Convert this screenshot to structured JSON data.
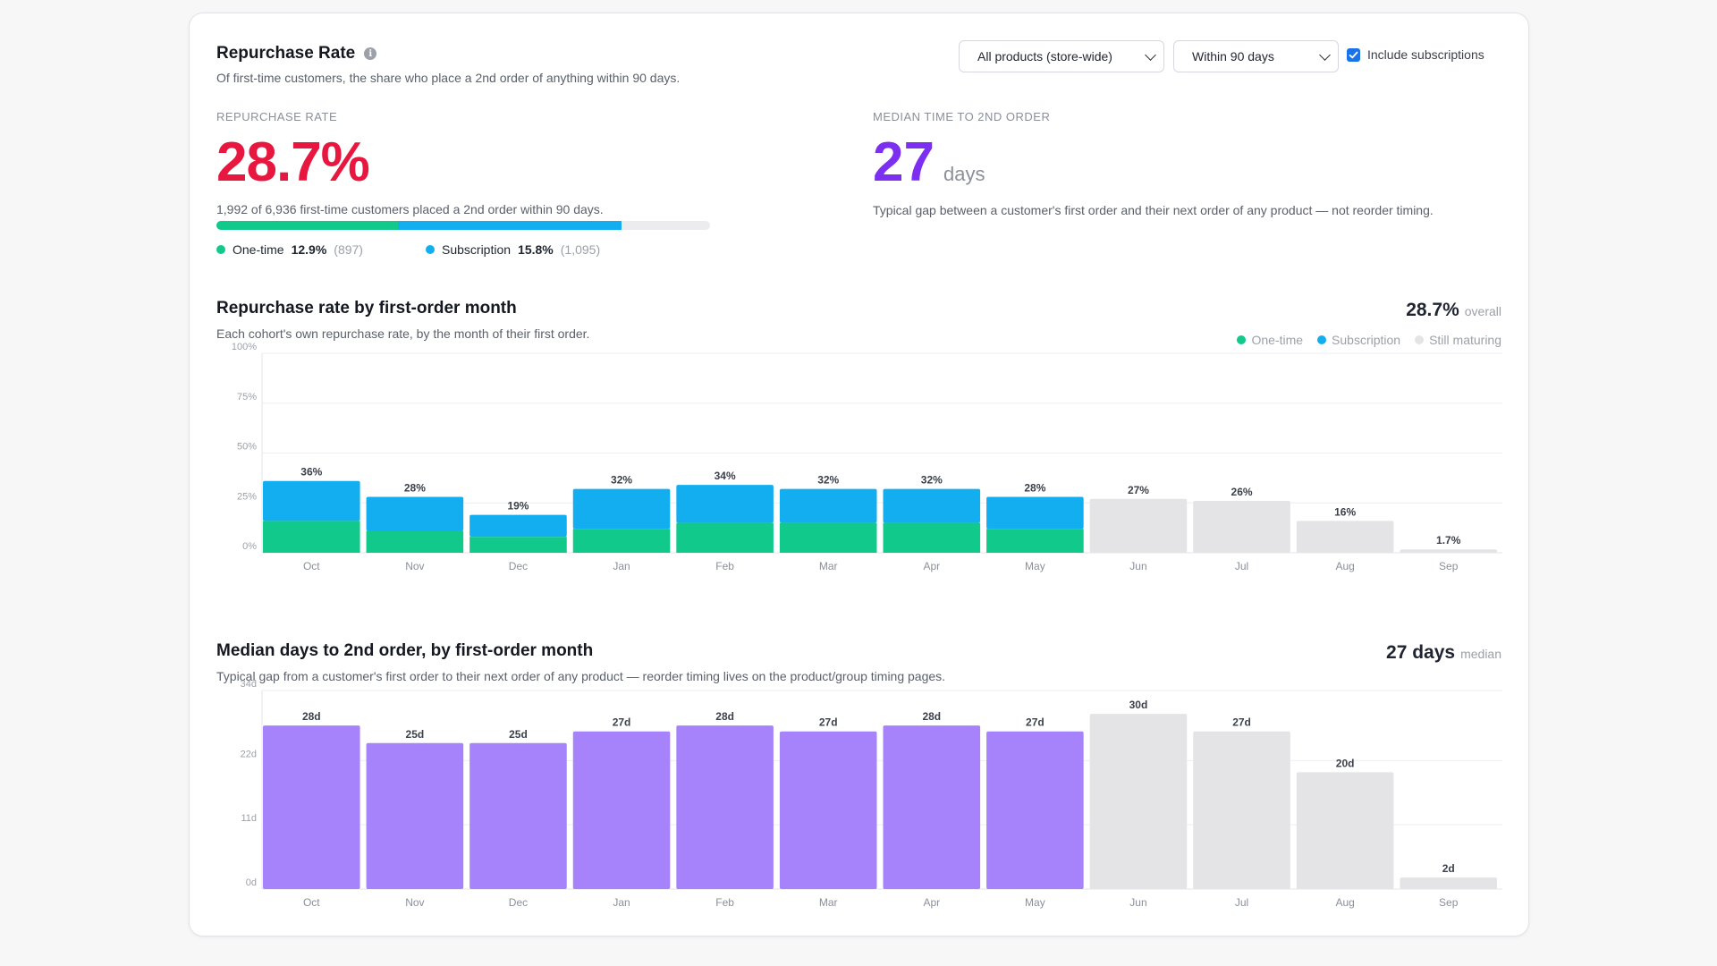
{
  "header": {
    "title": "Repurchase Rate",
    "subtitle": "Of first-time customers, the share who place a 2nd order of anything within 90 days."
  },
  "controls": {
    "product_filter": "All products (store-wide)",
    "window_filter": "Within 90 days",
    "include_subscriptions_label": "Include subscriptions",
    "include_subscriptions_checked": true
  },
  "kpi_rate": {
    "label": "REPURCHASE RATE",
    "value": "28.7%",
    "description": "1,992 of 6,936 first-time customers placed a 2nd order within 90 days.",
    "one_time_share": 12.9,
    "subscription_share": 15.8,
    "one_time_label": "One-time",
    "one_time_pct": "12.9%",
    "one_time_count": "(897)",
    "subscription_label": "Subscription",
    "subscription_pct": "15.8%",
    "subscription_count": "(1,095)"
  },
  "kpi_median": {
    "label": "MEDIAN TIME TO 2ND ORDER",
    "value": "27",
    "unit": "days",
    "description": "Typical gap between a customer's first order and their next order of any product — not reorder timing."
  },
  "rate_chart_section": {
    "title": "Repurchase rate by first-order month",
    "subtitle": "Each cohort's own repurchase rate, by the month of their first order.",
    "summary_value": "28.7%",
    "summary_label": "overall",
    "legend": {
      "one_time": "One-time",
      "subscription": "Subscription",
      "maturing": "Still maturing"
    }
  },
  "median_chart_section": {
    "title": "Median days to 2nd order, by first-order month",
    "subtitle": "Typical gap from a customer's first order to their next order of any product — reorder timing lives on the product/group timing pages.",
    "summary_value": "27 days",
    "summary_label": "median"
  },
  "colors": {
    "one_time": "#10c98a",
    "subscription": "#12aef0",
    "maturing": "#e4e4e6",
    "median": "#a783fb",
    "rate_text": "#e8173f",
    "days_text": "#7c2ff0"
  },
  "chart_data": [
    {
      "type": "bar",
      "stacked": true,
      "categories": [
        "Oct",
        "Nov",
        "Dec",
        "Jan",
        "Feb",
        "Mar",
        "Apr",
        "May",
        "Jun",
        "Jul",
        "Aug",
        "Sep"
      ],
      "series": [
        {
          "name": "One-time",
          "values": [
            16,
            11,
            8,
            12,
            15,
            15,
            15,
            12,
            0,
            0,
            0,
            0
          ]
        },
        {
          "name": "Subscription",
          "values": [
            20,
            17,
            11,
            20,
            19,
            17,
            17,
            16,
            0,
            0,
            0,
            0
          ]
        },
        {
          "name": "Still maturing",
          "values": [
            0,
            0,
            0,
            0,
            0,
            0,
            0,
            0,
            27,
            26,
            16,
            1.7
          ]
        }
      ],
      "totals": [
        36,
        28,
        19,
        32,
        34,
        32,
        32,
        28,
        27,
        26,
        16,
        1.7
      ],
      "data_labels": [
        "36%",
        "28%",
        "19%",
        "32%",
        "34%",
        "32%",
        "32%",
        "28%",
        "27%",
        "26%",
        "16%",
        "1.7%"
      ],
      "yticks": [
        "0%",
        "25%",
        "50%",
        "75%",
        "100%"
      ],
      "ylim": [
        0,
        100
      ],
      "grid": true
    },
    {
      "type": "bar",
      "categories": [
        "Oct",
        "Nov",
        "Dec",
        "Jan",
        "Feb",
        "Mar",
        "Apr",
        "May",
        "Jun",
        "Jul",
        "Aug",
        "Sep"
      ],
      "values": [
        28,
        25,
        25,
        27,
        28,
        27,
        28,
        27,
        30,
        27,
        20,
        2
      ],
      "maturing_from_index": 8,
      "data_labels": [
        "28d",
        "25d",
        "25d",
        "27d",
        "28d",
        "27d",
        "28d",
        "27d",
        "30d",
        "27d",
        "20d",
        "2d"
      ],
      "yticks": [
        "0d",
        "11d",
        "22d",
        "34d"
      ],
      "ylim": [
        0,
        34
      ],
      "grid": true
    }
  ]
}
